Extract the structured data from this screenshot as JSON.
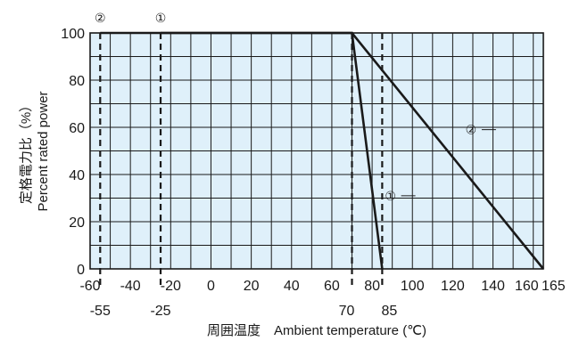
{
  "chart_data": {
    "type": "line",
    "xlabel": "周囲温度　Ambient temperature (℃)",
    "ylabel_jp": "定格電力比（%）",
    "ylabel_en": "Percent rated power",
    "xlim": [
      -60,
      165
    ],
    "ylim": [
      0,
      100
    ],
    "grid": true,
    "plot_background": "#dff0fa",
    "line_color": "#1a1a1a",
    "x_ticks": [
      {
        "value": -60,
        "label": "-60"
      },
      {
        "value": -40,
        "label": "-40"
      },
      {
        "value": -20,
        "label": "-20"
      },
      {
        "value": 0,
        "label": "0"
      },
      {
        "value": 20,
        "label": "20"
      },
      {
        "value": 40,
        "label": "40"
      },
      {
        "value": 60,
        "label": "60"
      },
      {
        "value": 80,
        "label": "80"
      },
      {
        "value": 100,
        "label": "100"
      },
      {
        "value": 120,
        "label": "120"
      },
      {
        "value": 140,
        "label": "140"
      },
      {
        "value": 160,
        "label": "160"
      },
      {
        "value": 165,
        "label": "165"
      }
    ],
    "x_ticks_secondary": [
      {
        "value": -55,
        "label": "-55"
      },
      {
        "value": -25,
        "label": "-25"
      },
      {
        "value": 70,
        "label": "70"
      },
      {
        "value": 85,
        "label": "85"
      }
    ],
    "y_ticks": [
      {
        "value": 0,
        "label": "0"
      },
      {
        "value": 20,
        "label": "20"
      },
      {
        "value": 40,
        "label": "40"
      },
      {
        "value": 60,
        "label": "60"
      },
      {
        "value": 80,
        "label": "80"
      },
      {
        "value": 100,
        "label": "100"
      }
    ],
    "minor_x_step": 10,
    "minor_y_step": 10,
    "series": [
      {
        "name": "①",
        "points": [
          [
            -25,
            100
          ],
          [
            70,
            100
          ],
          [
            85,
            0
          ]
        ],
        "label_at": [
          82,
          31
        ]
      },
      {
        "name": "②",
        "points": [
          [
            -55,
            100
          ],
          [
            70,
            100
          ],
          [
            165,
            0
          ]
        ],
        "label_at": [
          122,
          59
        ]
      }
    ],
    "markers": [
      {
        "x": -55,
        "label": "②"
      },
      {
        "x": -25,
        "label": "①"
      },
      {
        "x": 70,
        "label": ""
      },
      {
        "x": 85,
        "label": ""
      }
    ]
  }
}
